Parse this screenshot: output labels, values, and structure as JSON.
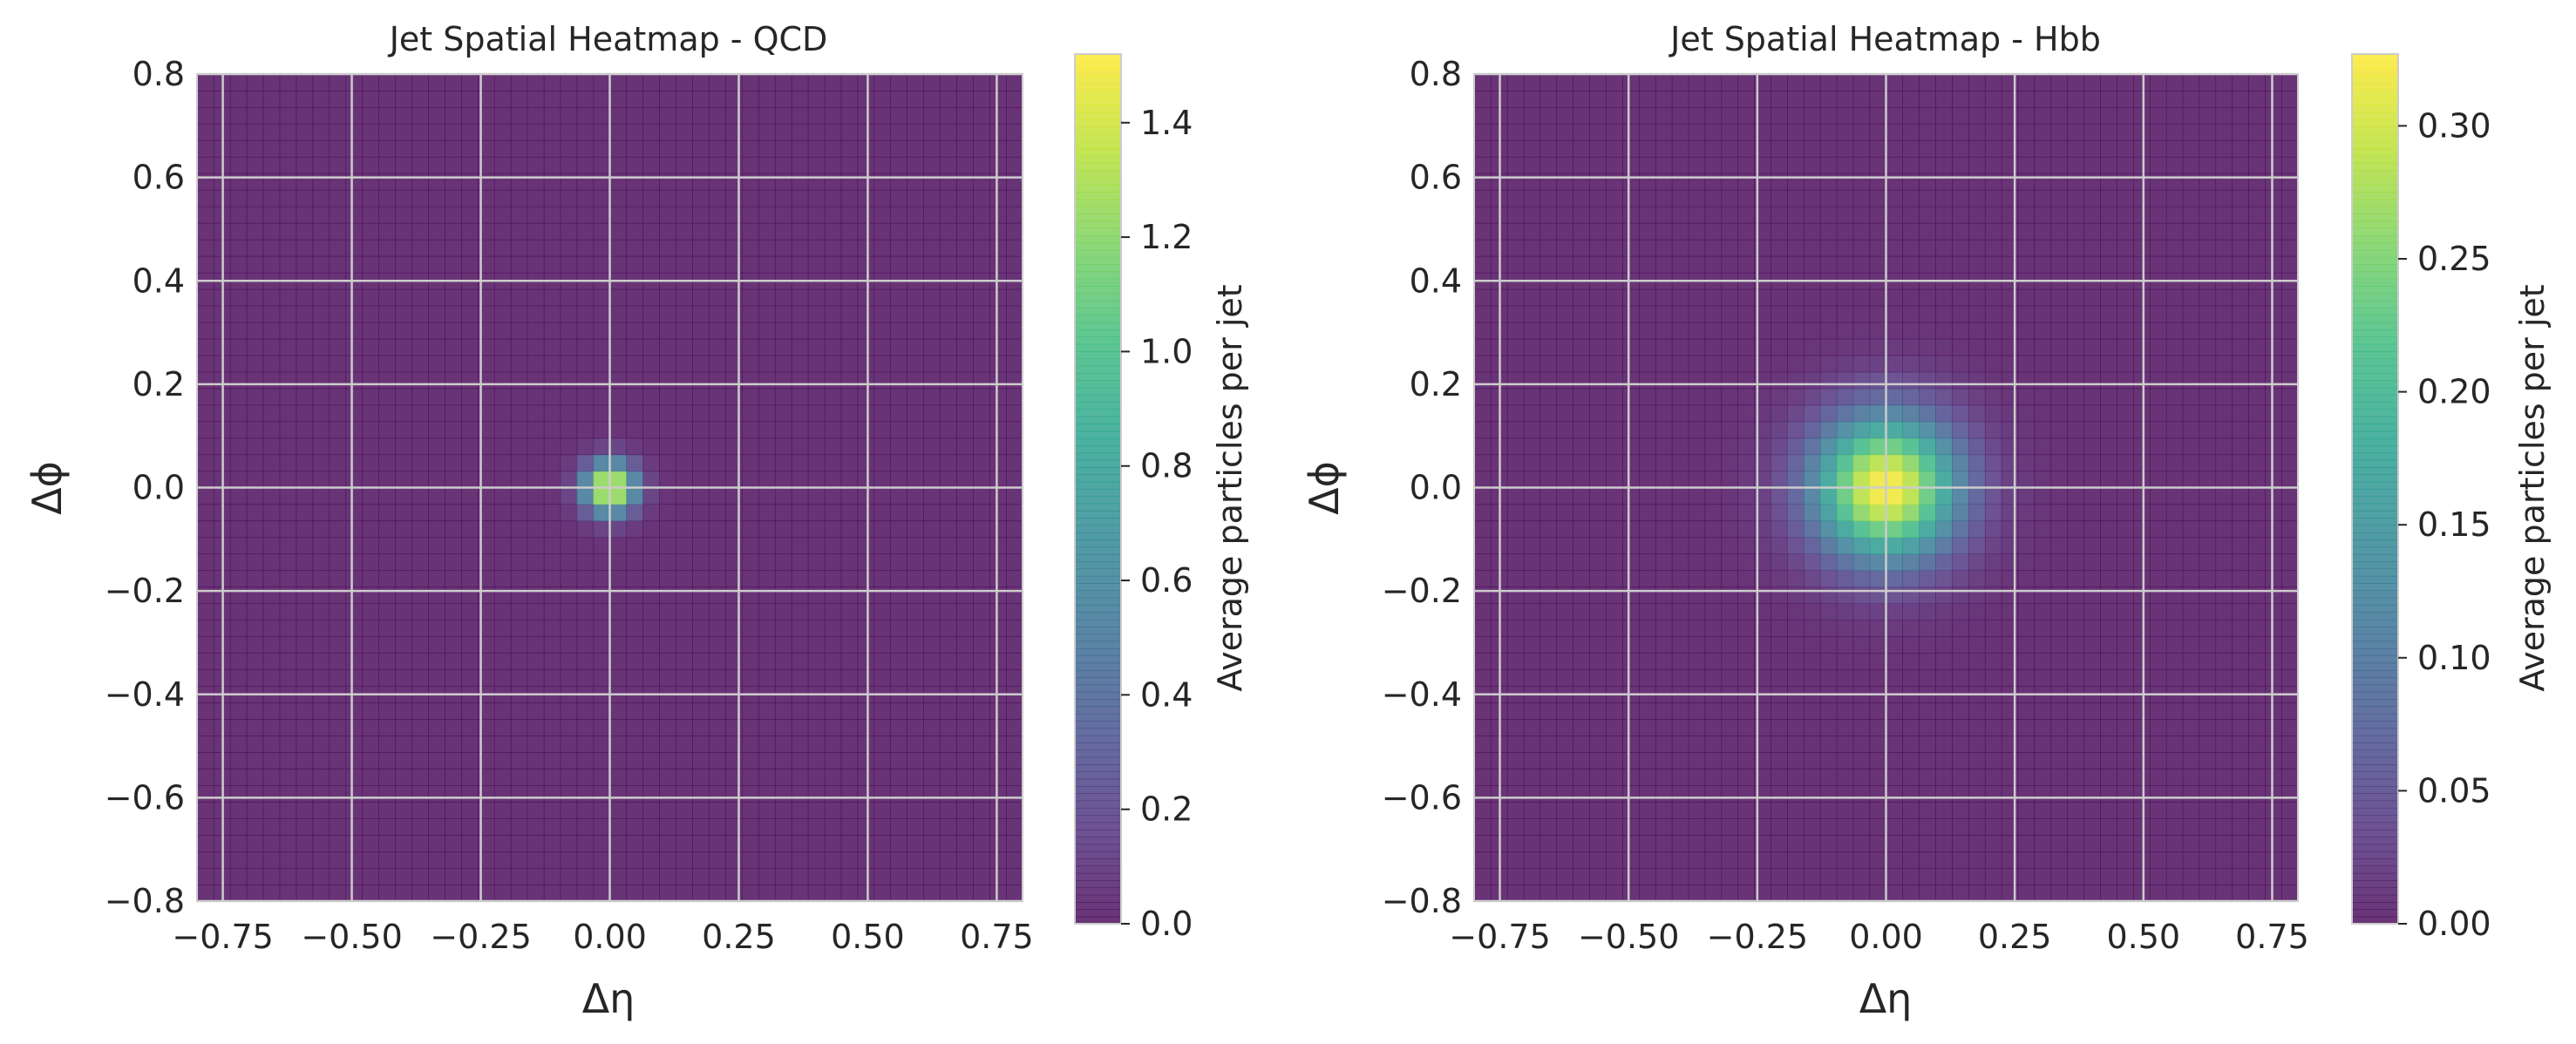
{
  "chart_data": [
    {
      "type": "heatmap",
      "title": "Jet Spatial Heatmap - QCD",
      "xlabel": "Δη",
      "ylabel": "Δϕ",
      "xlim": [
        -0.8,
        0.8
      ],
      "ylim": [
        -0.8,
        0.8
      ],
      "x_ticks": [
        "−0.75",
        "−0.50",
        "−0.25",
        "0.00",
        "0.25",
        "0.50",
        "0.75"
      ],
      "x_tick_values": [
        -0.75,
        -0.5,
        -0.25,
        0,
        0.25,
        0.5,
        0.75
      ],
      "y_ticks": [
        "−0.8",
        "−0.6",
        "−0.4",
        "−0.2",
        "0.0",
        "0.2",
        "0.4",
        "0.6",
        "0.8"
      ],
      "y_tick_values": [
        -0.8,
        -0.6,
        -0.4,
        -0.2,
        0,
        0.2,
        0.4,
        0.6,
        0.8
      ],
      "grid": true,
      "bins": 50,
      "peak_center": [
        0.0,
        0.0
      ],
      "peak_value": 1.52,
      "spread_sigma": 0.035,
      "colorbar": {
        "label": "Average particles per jet",
        "range": [
          0.0,
          1.52
        ],
        "ticks": [
          "0.0",
          "0.2",
          "0.4",
          "0.6",
          "0.8",
          "1.0",
          "1.2",
          "1.4"
        ],
        "tick_values": [
          0,
          0.2,
          0.4,
          0.6,
          0.8,
          1.0,
          1.2,
          1.4
        ]
      },
      "colormap": "viridis"
    },
    {
      "type": "heatmap",
      "title": "Jet Spatial Heatmap - Hbb",
      "xlabel": "Δη",
      "ylabel": "Δϕ",
      "xlim": [
        -0.8,
        0.8
      ],
      "ylim": [
        -0.8,
        0.8
      ],
      "x_ticks": [
        "−0.75",
        "−0.50",
        "−0.25",
        "0.00",
        "0.25",
        "0.50",
        "0.75"
      ],
      "x_tick_values": [
        -0.75,
        -0.5,
        -0.25,
        0,
        0.25,
        0.5,
        0.75
      ],
      "y_ticks": [
        "−0.8",
        "−0.6",
        "−0.4",
        "−0.2",
        "0.0",
        "0.2",
        "0.4",
        "0.6",
        "0.8"
      ],
      "y_tick_values": [
        -0.8,
        -0.6,
        -0.4,
        -0.2,
        0,
        0.2,
        0.4,
        0.6,
        0.8
      ],
      "grid": true,
      "bins": 50,
      "peak_center": [
        0.0,
        0.0
      ],
      "peak_value": 0.327,
      "spread_sigma": 0.1,
      "colorbar": {
        "label": "Average particles per jet",
        "range": [
          0.0,
          0.327
        ],
        "ticks": [
          "0.00",
          "0.05",
          "0.10",
          "0.15",
          "0.20",
          "0.25",
          "0.30"
        ],
        "tick_values": [
          0,
          0.05,
          0.1,
          0.15,
          0.2,
          0.25,
          0.3
        ]
      },
      "colormap": "viridis"
    }
  ]
}
